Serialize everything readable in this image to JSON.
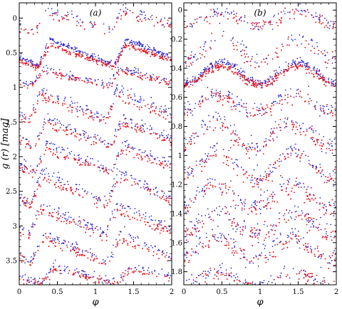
{
  "chart_data": [
    {
      "type": "scatter",
      "panel_label": "(a)",
      "xlabel": "φ",
      "ylabel": "g (r) [mag]",
      "xlim": [
        0,
        2
      ],
      "ylim": [
        3.85,
        -0.22
      ],
      "y_inverted": true,
      "x_ticks": [
        0,
        0.5,
        1,
        1.5,
        2
      ],
      "x_tick_labels": [
        "0",
        "0.5",
        "1",
        "1.5",
        "2"
      ],
      "y_ticks": [
        0,
        0.5,
        1,
        1.5,
        2,
        2.5,
        3,
        3.5
      ],
      "y_tick_labels": [
        "0",
        "0.5",
        "1",
        "1.5",
        "2",
        "2.5",
        "3",
        "3.5"
      ],
      "grid": false,
      "series_colors": {
        "g": "#1f1fd6",
        "r": "#e8141e"
      },
      "curve_shape": "sawtooth",
      "light_curves": [
        {
          "offset": 0.04,
          "amplitude": 0.28,
          "peak_phase": 0.36,
          "scatter": 0.035,
          "density": 70
        },
        {
          "offset": 0.52,
          "amplitude": 0.36,
          "peak_phase": 0.4,
          "scatter": 0.018,
          "density": 260
        },
        {
          "offset": 0.86,
          "amplitude": 0.24,
          "peak_phase": 0.32,
          "scatter": 0.025,
          "density": 120
        },
        {
          "offset": 1.27,
          "amplitude": 0.42,
          "peak_phase": 0.28,
          "scatter": 0.04,
          "density": 120
        },
        {
          "offset": 1.66,
          "amplitude": 0.38,
          "peak_phase": 0.35,
          "scatter": 0.03,
          "density": 120
        },
        {
          "offset": 2.04,
          "amplitude": 0.38,
          "peak_phase": 0.36,
          "scatter": 0.03,
          "density": 120
        },
        {
          "offset": 2.47,
          "amplitude": 0.45,
          "peak_phase": 0.3,
          "scatter": 0.035,
          "density": 120
        },
        {
          "offset": 2.92,
          "amplitude": 0.42,
          "peak_phase": 0.28,
          "scatter": 0.035,
          "density": 120
        },
        {
          "offset": 3.34,
          "amplitude": 0.4,
          "peak_phase": 0.32,
          "scatter": 0.035,
          "density": 110
        },
        {
          "offset": 3.72,
          "amplitude": 0.22,
          "peak_phase": 0.44,
          "scatter": 0.03,
          "density": 110
        }
      ]
    },
    {
      "type": "scatter",
      "panel_label": "(b)",
      "xlabel": "φ",
      "xlim": [
        0,
        2
      ],
      "ylim": [
        1.89,
        -0.05
      ],
      "y_inverted": true,
      "x_ticks": [
        0,
        0.5,
        1,
        1.5,
        2
      ],
      "x_tick_labels": [
        "0",
        "0.5",
        "1",
        "1.5",
        "2"
      ],
      "y_ticks": [
        0,
        0.2,
        0.4,
        0.6,
        0.8,
        1,
        1.2,
        1.4,
        1.6,
        1.8
      ],
      "y_tick_labels": [
        "0",
        "0.2",
        "0.4",
        "0.6",
        "0.8",
        "1",
        "1.2",
        "1.4",
        "1.6",
        "1.8"
      ],
      "grid": false,
      "series_colors": {
        "g": "#1f1fd6",
        "r": "#e8141e"
      },
      "curve_shape": "sinusoidal",
      "light_curves": [
        {
          "offset": 0.06,
          "amplitude": 0.1,
          "peak_phase": 0.5,
          "scatter": 0.02,
          "density": 90
        },
        {
          "offset": 0.27,
          "amplitude": 0.16,
          "peak_phase": 0.5,
          "scatter": 0.03,
          "density": 70
        },
        {
          "offset": 0.44,
          "amplitude": 0.14,
          "peak_phase": 0.5,
          "scatter": 0.014,
          "density": 260
        },
        {
          "offset": 0.64,
          "amplitude": 0.14,
          "peak_phase": 0.45,
          "scatter": 0.025,
          "density": 110
        },
        {
          "offset": 0.86,
          "amplitude": 0.17,
          "peak_phase": 0.42,
          "scatter": 0.03,
          "density": 110
        },
        {
          "offset": 1.07,
          "amplitude": 0.18,
          "peak_phase": 0.45,
          "scatter": 0.03,
          "density": 110
        },
        {
          "offset": 1.28,
          "amplitude": 0.16,
          "peak_phase": 0.42,
          "scatter": 0.03,
          "density": 110
        },
        {
          "offset": 1.47,
          "amplitude": 0.16,
          "peak_phase": 0.45,
          "scatter": 0.03,
          "density": 110
        },
        {
          "offset": 1.64,
          "amplitude": 0.16,
          "peak_phase": 0.42,
          "scatter": 0.03,
          "density": 110
        },
        {
          "offset": 1.85,
          "amplitude": 0.1,
          "peak_phase": 0.45,
          "scatter": 0.02,
          "density": 90
        }
      ]
    }
  ]
}
